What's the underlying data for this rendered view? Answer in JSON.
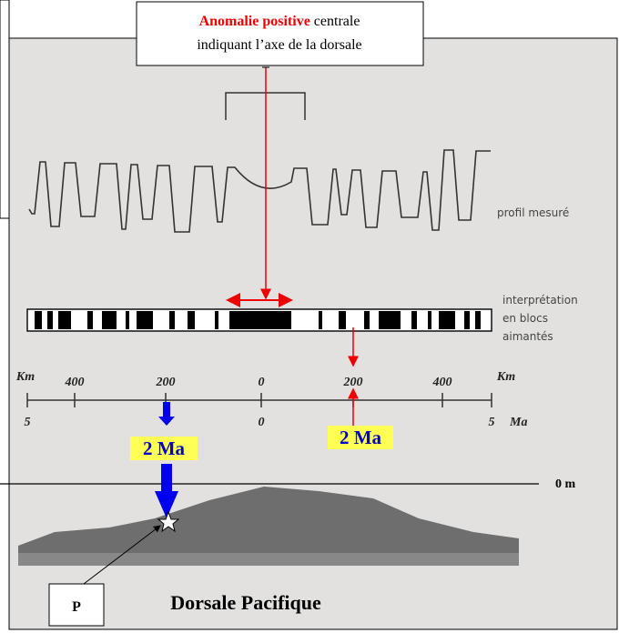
{
  "callout": {
    "highlight": "Anomalie positive",
    "text1": "centrale",
    "text2": "indiquant l’axe de la dorsale"
  },
  "labels": {
    "profile": "profil mesuré",
    "interpretation": [
      "interprétation",
      "en blocs",
      "aimantés"
    ]
  },
  "scale": {
    "km_unit_left": "Km",
    "km_unit_right": "Km",
    "km_ticks": [
      "400",
      "200",
      "0",
      "200",
      "400"
    ],
    "ma_ticks": [
      "5",
      "0",
      "5"
    ],
    "ma_unit": "Ma"
  },
  "age_labels": [
    "2 Ma",
    "2 Ma"
  ],
  "sea_level": "0 m",
  "point": "P",
  "title": "Dorsale Pacifique"
}
